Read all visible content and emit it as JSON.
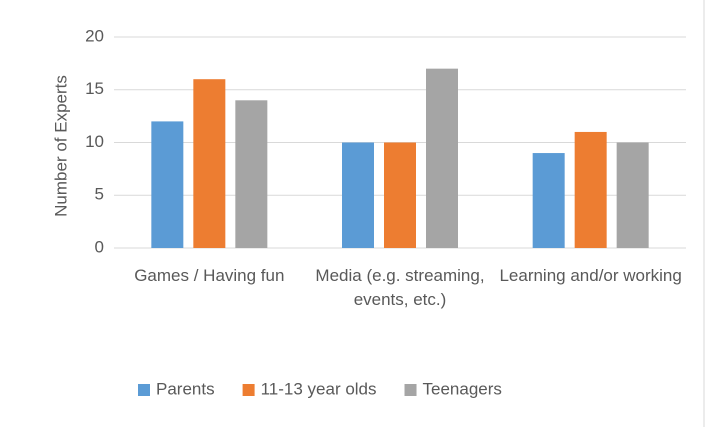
{
  "chart_data": {
    "type": "bar",
    "y_label": "Number of Experts",
    "categories": [
      "Games / Having fun",
      "Media (e.g. streaming, events, etc.)",
      "Learning and/or working"
    ],
    "series": [
      {
        "name": "Parents",
        "color": "#5b9bd5",
        "values": [
          12,
          10,
          9
        ]
      },
      {
        "name": "11-13 year olds",
        "color": "#ed7d31",
        "values": [
          16,
          10,
          11
        ]
      },
      {
        "name": "Teenagers",
        "color": "#a5a5a5",
        "values": [
          14,
          17,
          10
        ]
      }
    ],
    "ylim": [
      0,
      20
    ],
    "yticks": [
      0,
      5,
      10,
      15,
      20
    ],
    "grid": true,
    "legend": "bottom"
  }
}
